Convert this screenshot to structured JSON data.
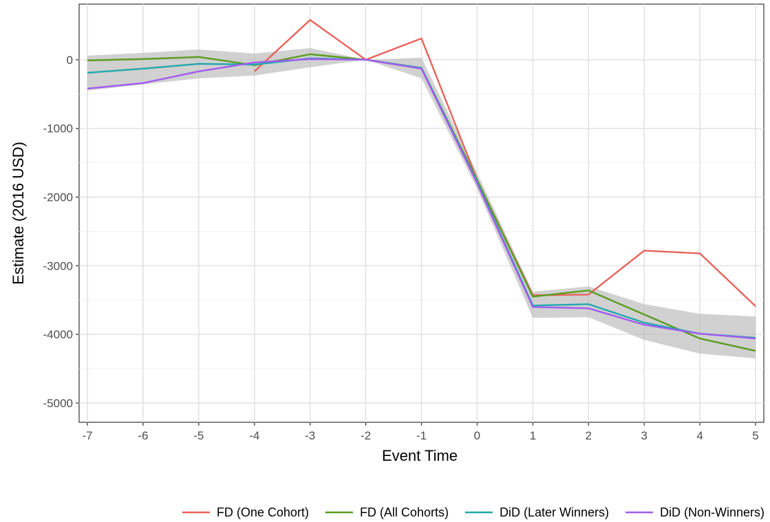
{
  "chart_data": {
    "type": "line",
    "title": "",
    "xlabel": "Event Time",
    "ylabel": "Estimate (2016 USD)",
    "x": [
      -7,
      -6,
      -5,
      -4,
      -3,
      -2,
      -1,
      0,
      1,
      2,
      3,
      4,
      5
    ],
    "xticks": [
      "-7",
      "-6",
      "-5",
      "-4",
      "-3",
      "-2",
      "-1",
      "0",
      "1",
      "2",
      "3",
      "4",
      "5"
    ],
    "yticks": [
      0,
      -1000,
      -2000,
      -3000,
      -4000,
      -5000
    ],
    "ytick_labels": [
      "0",
      "-1000",
      "-2000",
      "-3000",
      "-4000",
      "-5000"
    ],
    "xlim": [
      -7,
      5
    ],
    "ylim": [
      -5280,
      810
    ],
    "grid": true,
    "legend_position": "bottom",
    "series": [
      {
        "name": "FD (One Cohort)",
        "color": "#e8625a",
        "points": [
          [
            -4,
            -170
          ],
          [
            -3,
            580
          ],
          [
            -2,
            0
          ],
          [
            -1,
            310
          ],
          [
            0,
            -1750
          ],
          [
            1,
            -3430
          ],
          [
            2,
            -3420
          ],
          [
            3,
            -2780
          ],
          [
            4,
            -2820
          ],
          [
            5,
            -3590
          ]
        ]
      },
      {
        "name": "FD (All Cohorts)",
        "color": "#5a9c1e",
        "points": [
          [
            -7,
            -10
          ],
          [
            -6,
            10
          ],
          [
            -5,
            40
          ],
          [
            -4,
            -80
          ],
          [
            -3,
            80
          ],
          [
            -2,
            0
          ],
          [
            -1,
            -120
          ],
          [
            0,
            -1750
          ],
          [
            1,
            -3450
          ],
          [
            2,
            -3360
          ],
          [
            3,
            -3710
          ],
          [
            4,
            -4060
          ],
          [
            5,
            -4240
          ]
        ]
      },
      {
        "name": "DiD (Later Winners)",
        "color": "#1fa8ad",
        "points": [
          [
            -7,
            -190
          ],
          [
            -6,
            -130
          ],
          [
            -5,
            -60
          ],
          [
            -4,
            -70
          ],
          [
            -3,
            20
          ],
          [
            -2,
            0
          ],
          [
            -1,
            -120
          ],
          [
            0,
            -1780
          ],
          [
            1,
            -3580
          ],
          [
            2,
            -3560
          ],
          [
            3,
            -3830
          ],
          [
            4,
            -3990
          ],
          [
            5,
            -4050
          ]
        ]
      },
      {
        "name": "DiD (Non-Winners)",
        "color": "#a25af0",
        "points": [
          [
            -7,
            -420
          ],
          [
            -6,
            -340
          ],
          [
            -5,
            -170
          ],
          [
            -4,
            -40
          ],
          [
            -3,
            10
          ],
          [
            -2,
            0
          ],
          [
            -1,
            -130
          ],
          [
            0,
            -1800
          ],
          [
            1,
            -3600
          ],
          [
            2,
            -3620
          ],
          [
            3,
            -3860
          ],
          [
            4,
            -3990
          ],
          [
            5,
            -4060
          ]
        ]
      }
    ],
    "confidence_band": {
      "color": "#bdbdbd",
      "x": [
        -7,
        -6,
        -5,
        -4,
        -3,
        -2,
        -1,
        0,
        1,
        2,
        3,
        4,
        5
      ],
      "upper": [
        60,
        100,
        150,
        90,
        170,
        0,
        30,
        -1650,
        -3380,
        -3300,
        -3560,
        -3700,
        -3740
      ],
      "lower": [
        -450,
        -360,
        -270,
        -230,
        -110,
        0,
        -270,
        -1880,
        -3760,
        -3750,
        -4080,
        -4280,
        -4350
      ]
    }
  }
}
